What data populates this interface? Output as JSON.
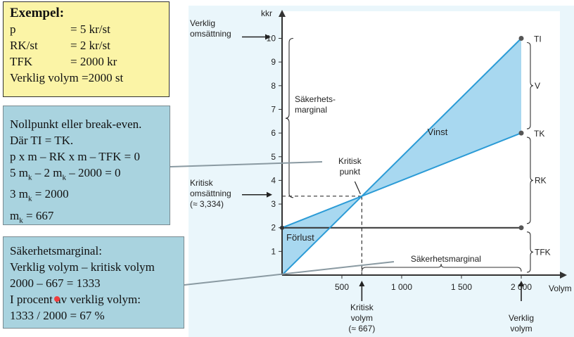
{
  "example": {
    "title": "Exempel:",
    "rows": [
      {
        "label": "p",
        "value": "= 5 kr/st"
      },
      {
        "label": "RK/st",
        "value": "= 2 kr/st"
      },
      {
        "label": "TFK",
        "value": "= 2000 kr"
      }
    ],
    "last": "Verklig volym =2000 st"
  },
  "breakeven": {
    "line1": "Nollpunkt eller break-even.",
    "line2": "Där TI = TK.",
    "line3": "p x m – RK x m – TFK = 0",
    "line4_a": "5 m",
    "line4_sub": "k",
    "line4_b": " – 2 m",
    "line4_sub2": "k",
    "line4_c": " – 2000 = 0",
    "line5_a": "3 m",
    "line5_sub": "k",
    "line5_b": " = 2000",
    "line6_a": "m",
    "line6_sub": "k",
    "line6_b": " = 667"
  },
  "safety": {
    "line1": "Säkerhetsmarginal:",
    "line2": "Verklig volym – kritisk volym",
    "line3": "2000 – 667 = 1333",
    "line4": "I procent av verklig volym:",
    "line5": "1333 / 2000 = 67 %"
  },
  "chart_data": {
    "type": "line",
    "ylabel": "kkr",
    "xlabel": "Volym",
    "xlim": [
      0,
      2300
    ],
    "ylim": [
      0,
      11
    ],
    "x_ticks": [
      "500",
      "1 000",
      "1 500",
      "2 000"
    ],
    "y_ticks": [
      "1",
      "2",
      "3",
      "4",
      "5",
      "6",
      "7",
      "8",
      "9",
      "10"
    ],
    "series": [
      {
        "name": "TI",
        "x": [
          0,
          2000
        ],
        "y": [
          0,
          10
        ]
      },
      {
        "name": "TK",
        "x": [
          0,
          2000
        ],
        "y": [
          2,
          6
        ]
      },
      {
        "name": "TFK",
        "x": [
          0,
          2000
        ],
        "y": [
          2,
          2
        ]
      }
    ],
    "critical_point": {
      "x": 667,
      "y": 3.334
    },
    "annotations": {
      "verklig_oms": [
        "Verklig",
        "omsättning"
      ],
      "kritisk_oms": [
        "Kritisk",
        "omsättning",
        "(≈ 3,334)"
      ],
      "sakerhetsmarginal_y": [
        "Säkerhets-",
        "marginal"
      ],
      "kritisk_punkt": [
        "Kritisk",
        "punkt"
      ],
      "vinst": "Vinst",
      "forlust": "Förlust",
      "sakerhetsmarginal_x": "Säkerhetsmarginal",
      "kritisk_volym": [
        "Kritisk",
        "volym",
        "(≈ 667)"
      ],
      "verklig_volym": [
        "Verklig",
        "volym"
      ],
      "right_labels": [
        "TI",
        "V",
        "TK",
        "RK",
        "TFK"
      ]
    },
    "colors": {
      "line_blue": "#2b9bd6",
      "fill_blue": "#a8d8f0",
      "fixed_line": "#333333",
      "panel_bg": "#eaf6fb"
    }
  }
}
